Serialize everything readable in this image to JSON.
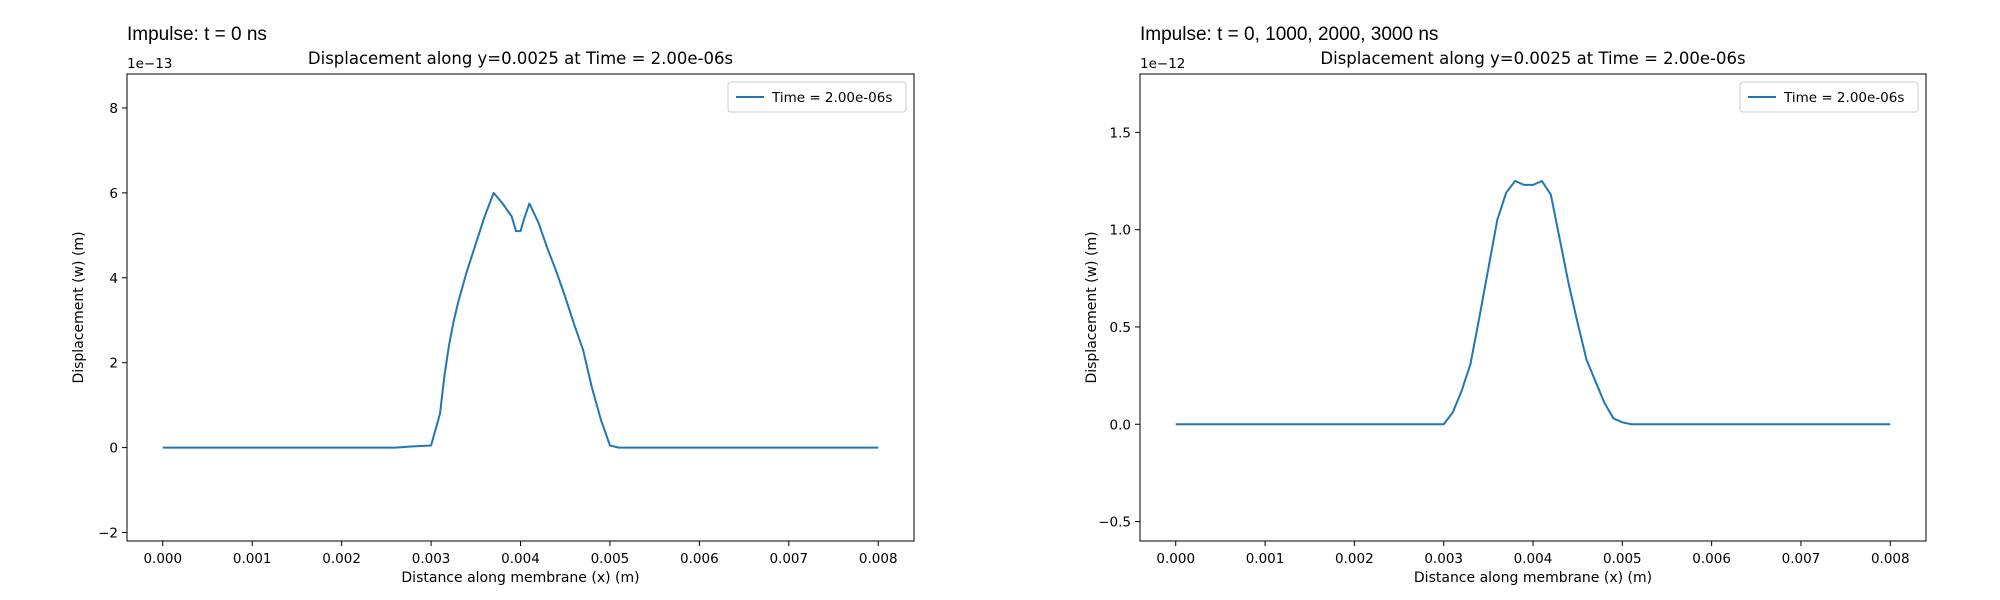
{
  "panels": [
    {
      "heading": "Impulse: t = 0 ns",
      "chart_data": {
        "type": "line",
        "title": "Displacement along y=0.0025 at Time = 2.00e-06s",
        "xlabel": "Distance along membrane (x) (m)",
        "ylabel": "Displacement (w) (m)",
        "y_offset_text": "1e−13",
        "y_scale": 1e-13,
        "xlim": [
          -0.0004,
          0.0084
        ],
        "ylim": [
          -2.2,
          8.8
        ],
        "xticks": [
          0.0,
          0.001,
          0.002,
          0.003,
          0.004,
          0.005,
          0.006,
          0.007,
          0.008
        ],
        "xtick_labels": [
          "0.000",
          "0.001",
          "0.002",
          "0.003",
          "0.004",
          "0.005",
          "0.006",
          "0.007",
          "0.008"
        ],
        "yticks": [
          -2,
          0,
          2,
          4,
          6,
          8
        ],
        "ytick_labels": [
          "−2",
          "0",
          "2",
          "4",
          "6",
          "8"
        ],
        "grid": false,
        "legend_position": "top-right",
        "series": [
          {
            "name": "Time = 2.00e-06s",
            "color": "#1f77b4",
            "x": [
              0.0,
              0.001,
              0.002,
              0.0026,
              0.0028,
              0.003,
              0.0031,
              0.00315,
              0.0032,
              0.00325,
              0.0033,
              0.0034,
              0.0035,
              0.0036,
              0.0037,
              0.0038,
              0.0039,
              0.00395,
              0.004,
              0.00405,
              0.0041,
              0.0042,
              0.0043,
              0.0044,
              0.0045,
              0.0046,
              0.0047,
              0.00475,
              0.0048,
              0.0049,
              0.005,
              0.0051,
              0.0052,
              0.006,
              0.007,
              0.008
            ],
            "y": [
              0.0,
              0.0,
              0.0,
              0.0,
              0.03,
              0.05,
              0.8,
              1.7,
              2.4,
              2.95,
              3.4,
              4.15,
              4.8,
              5.45,
              6.0,
              5.75,
              5.45,
              5.1,
              5.1,
              5.45,
              5.75,
              5.3,
              4.7,
              4.15,
              3.55,
              2.9,
              2.3,
              1.85,
              1.4,
              0.65,
              0.05,
              0.0,
              0.0,
              0.0,
              0.0,
              0.0
            ]
          }
        ]
      }
    },
    {
      "heading": "Impulse: t = 0, 1000, 2000, 3000 ns",
      "chart_data": {
        "type": "line",
        "title": "Displacement along y=0.0025 at Time = 2.00e-06s",
        "xlabel": "Distance along membrane (x) (m)",
        "ylabel": "Displacement (w) (m)",
        "y_offset_text": "1e−12",
        "y_scale": 1e-12,
        "xlim": [
          -0.0004,
          0.0084
        ],
        "ylim": [
          -0.6,
          1.8
        ],
        "xticks": [
          0.0,
          0.001,
          0.002,
          0.003,
          0.004,
          0.005,
          0.006,
          0.007,
          0.008
        ],
        "xtick_labels": [
          "0.000",
          "0.001",
          "0.002",
          "0.003",
          "0.004",
          "0.005",
          "0.006",
          "0.007",
          "0.008"
        ],
        "yticks": [
          -0.5,
          0.0,
          0.5,
          1.0,
          1.5
        ],
        "ytick_labels": [
          "−0.5",
          "0.0",
          "0.5",
          "1.0",
          "1.5"
        ],
        "grid": false,
        "legend_position": "top-right",
        "series": [
          {
            "name": "Time = 2.00e-06s",
            "color": "#1f77b4",
            "x": [
              0.0,
              0.001,
              0.002,
              0.003,
              0.0031,
              0.0032,
              0.0033,
              0.0034,
              0.0035,
              0.0036,
              0.0037,
              0.0038,
              0.0039,
              0.004,
              0.0041,
              0.0042,
              0.0043,
              0.0044,
              0.0045,
              0.0046,
              0.0047,
              0.0048,
              0.0049,
              0.005,
              0.0051,
              0.006,
              0.007,
              0.008
            ],
            "y": [
              0.0,
              0.0,
              0.0,
              0.0,
              0.06,
              0.17,
              0.31,
              0.55,
              0.8,
              1.05,
              1.19,
              1.25,
              1.23,
              1.23,
              1.25,
              1.18,
              0.95,
              0.72,
              0.52,
              0.33,
              0.22,
              0.11,
              0.03,
              0.01,
              0.0,
              0.0,
              0.0,
              0.0
            ]
          }
        ]
      }
    }
  ]
}
